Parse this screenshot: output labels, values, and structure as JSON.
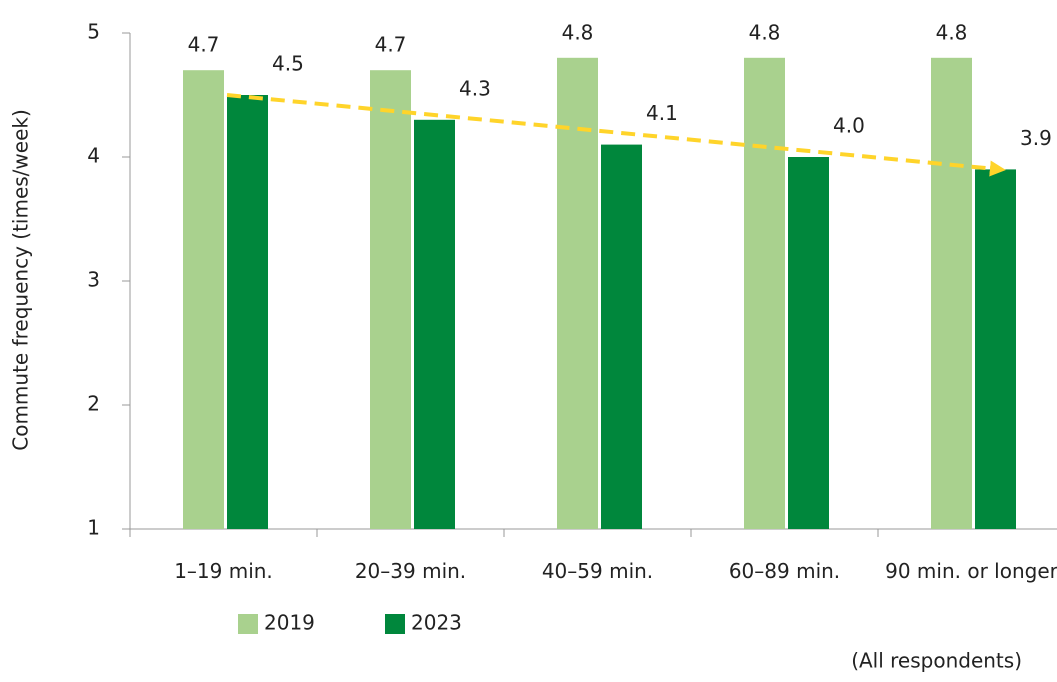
{
  "chart_data": {
    "type": "bar",
    "y_axis_label": "Commute frequency (times/week)",
    "categories": [
      "1–19 min.",
      "20–39 min.",
      "40–59 min.",
      "60–89 min.",
      "90 min. or longer"
    ],
    "series": [
      {
        "name": "2019",
        "color": "#a9d18e",
        "values": [
          4.7,
          4.7,
          4.8,
          4.8,
          4.8
        ],
        "value_labels": [
          "4.7",
          "4.7",
          "4.8",
          "4.8",
          "4.8"
        ]
      },
      {
        "name": "2023",
        "color": "#00873c",
        "values": [
          4.5,
          4.3,
          4.1,
          4.0,
          3.9
        ],
        "value_labels": [
          "4.5",
          "4.3",
          "4.1",
          "4.0",
          "3.9"
        ]
      }
    ],
    "trend_color": "#ffd42a",
    "ylim": [
      1,
      5
    ],
    "yticks": [
      1,
      2,
      3,
      4,
      5
    ],
    "note": "(All respondents)"
  }
}
